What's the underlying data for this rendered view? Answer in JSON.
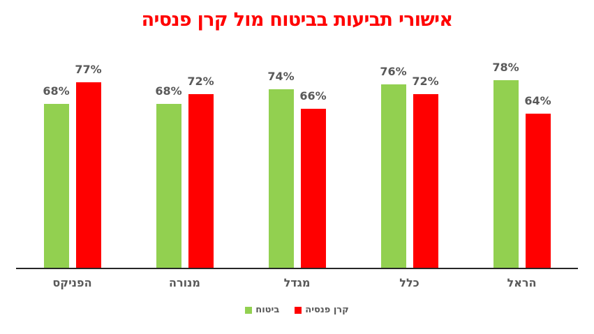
{
  "chart_data": {
    "type": "bar",
    "title": "אישורי תביעות בביטוח מול קרן פנסיה",
    "title_color": "#ff0000",
    "categories": [
      "הפניקס",
      "מנורה",
      "מגדל",
      "כלל",
      "הראל"
    ],
    "series": [
      {
        "key": "insurance",
        "name": "ביטוח",
        "color": "#92d050",
        "values": [
          68,
          68,
          74,
          76,
          78
        ]
      },
      {
        "key": "pension-fund",
        "name": "קרן פנסיה",
        "color": "#ff0000",
        "values": [
          77,
          72,
          66,
          72,
          64
        ]
      }
    ],
    "value_suffix": "%",
    "ylim": [
      0,
      80
    ],
    "legend_position": "bottom",
    "gridlines": false,
    "axis_color": "#262626",
    "label_color": "#595959"
  }
}
